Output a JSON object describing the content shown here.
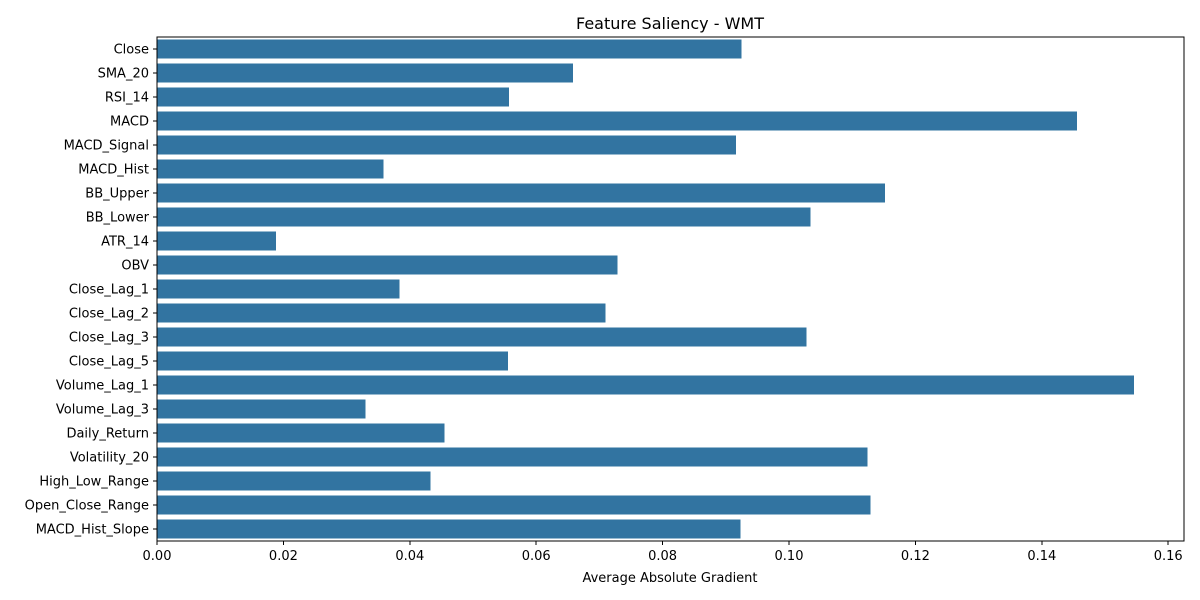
{
  "chart_data": {
    "type": "bar",
    "orientation": "horizontal",
    "title": "Feature Saliency - WMT",
    "xlabel": "Average Absolute Gradient",
    "ylabel": "",
    "xlim": [
      0,
      0.1625
    ],
    "xticks": [
      0.0,
      0.02,
      0.04,
      0.06,
      0.08,
      0.1,
      0.12,
      0.14,
      0.16
    ],
    "xtick_labels": [
      "0.00",
      "0.02",
      "0.04",
      "0.06",
      "0.08",
      "0.10",
      "0.12",
      "0.14",
      "0.16"
    ],
    "bar_color": "#3274a1",
    "grid": false,
    "categories": [
      "Close",
      "SMA_20",
      "RSI_14",
      "MACD",
      "MACD_Signal",
      "MACD_Hist",
      "BB_Upper",
      "BB_Lower",
      "ATR_14",
      "OBV",
      "Close_Lag_1",
      "Close_Lag_2",
      "Close_Lag_3",
      "Close_Lag_5",
      "Volume_Lag_1",
      "Volume_Lag_3",
      "Daily_Return",
      "Volatility_20",
      "High_Low_Range",
      "Open_Close_Range",
      "MACD_Hist_Slope"
    ],
    "values": [
      0.0925,
      0.0658,
      0.0557,
      0.1456,
      0.0916,
      0.0358,
      0.1152,
      0.1034,
      0.0188,
      0.0729,
      0.0384,
      0.071,
      0.1028,
      0.0555,
      0.1546,
      0.033,
      0.0455,
      0.1124,
      0.0433,
      0.1129,
      0.0923
    ]
  }
}
